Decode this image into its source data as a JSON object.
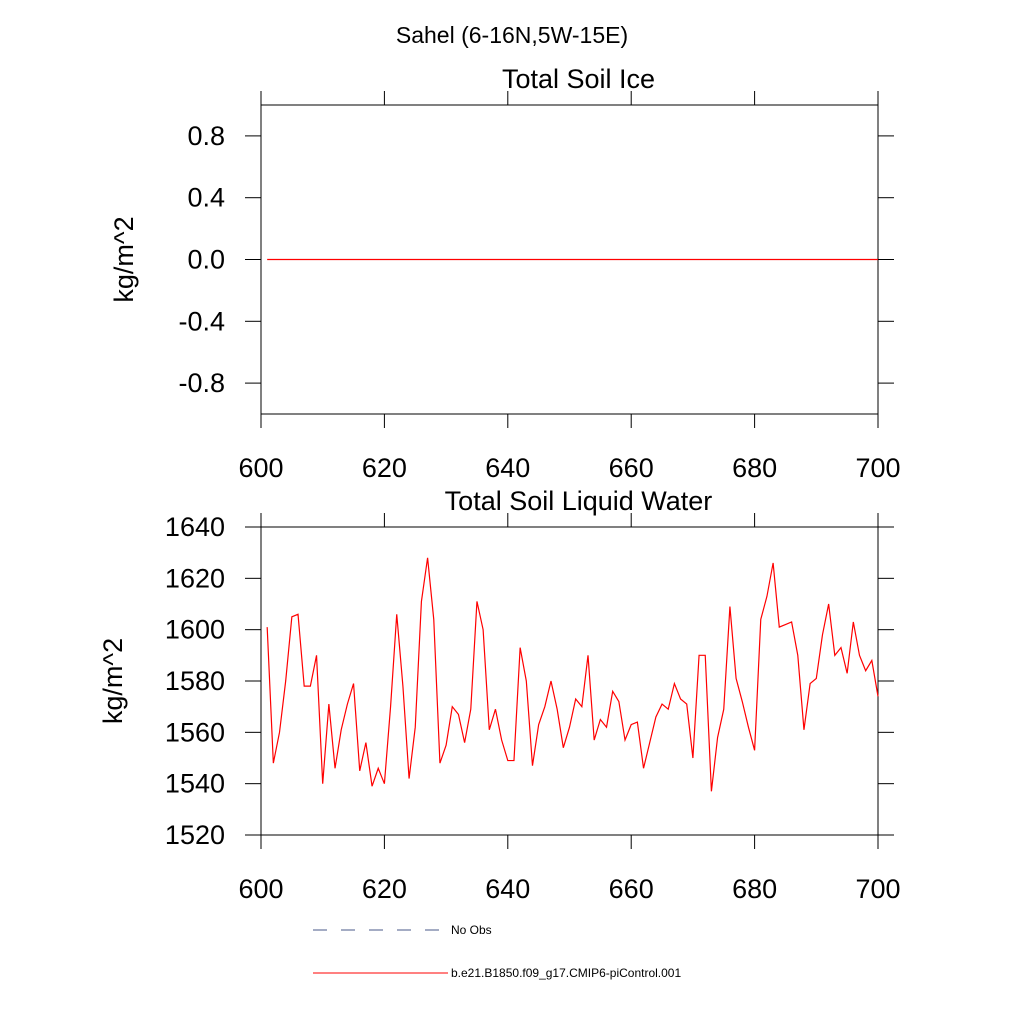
{
  "title": "Sahel (6-16N,5W-15E)",
  "legend": [
    {
      "name": "No Obs",
      "color": "#4a5a8a",
      "dash": true
    },
    {
      "name": "b.e21.B1850.f09_g17.CMIP6-piControl.001",
      "color": "#ff0000",
      "dash": false
    }
  ],
  "chart_data": [
    {
      "type": "line",
      "title": "Total Soil Ice",
      "y_label": "kg/m^2",
      "x": [
        601,
        602,
        603,
        604,
        605,
        606,
        607,
        608,
        609,
        610,
        611,
        612,
        613,
        614,
        615,
        616,
        617,
        618,
        619,
        620,
        621,
        622,
        623,
        624,
        625,
        626,
        627,
        628,
        629,
        630,
        631,
        632,
        633,
        634,
        635,
        636,
        637,
        638,
        639,
        640,
        641,
        642,
        643,
        644,
        645,
        646,
        647,
        648,
        649,
        650,
        651,
        652,
        653,
        654,
        655,
        656,
        657,
        658,
        659,
        660,
        661,
        662,
        663,
        664,
        665,
        666,
        667,
        668,
        669,
        670,
        671,
        672,
        673,
        674,
        675,
        676,
        677,
        678,
        679,
        680,
        681,
        682,
        683,
        684,
        685,
        686,
        687,
        688,
        689,
        690,
        691,
        692,
        693,
        694,
        695,
        696,
        697,
        698,
        699,
        700
      ],
      "series": [
        {
          "name": "b.e21.B1850.f09_g17.CMIP6-piControl.001",
          "color": "#ff0000",
          "values": [
            0,
            0,
            0,
            0,
            0,
            0,
            0,
            0,
            0,
            0,
            0,
            0,
            0,
            0,
            0,
            0,
            0,
            0,
            0,
            0,
            0,
            0,
            0,
            0,
            0,
            0,
            0,
            0,
            0,
            0,
            0,
            0,
            0,
            0,
            0,
            0,
            0,
            0,
            0,
            0,
            0,
            0,
            0,
            0,
            0,
            0,
            0,
            0,
            0,
            0,
            0,
            0,
            0,
            0,
            0,
            0,
            0,
            0,
            0,
            0,
            0,
            0,
            0,
            0,
            0,
            0,
            0,
            0,
            0,
            0,
            0,
            0,
            0,
            0,
            0,
            0,
            0,
            0,
            0,
            0,
            0,
            0,
            0,
            0,
            0,
            0,
            0,
            0,
            0,
            0,
            0,
            0,
            0,
            0,
            0,
            0,
            0,
            0,
            0,
            0
          ]
        }
      ],
      "xlim": [
        600,
        700
      ],
      "xticks": [
        600,
        620,
        640,
        660,
        680,
        700
      ],
      "ylim": [
        -1,
        1
      ],
      "yticks": [
        0.8,
        0.4,
        {
          "value": 0,
          "label": "0.0"
        },
        -0.4,
        -0.8
      ]
    },
    {
      "type": "line",
      "title": "Total Soil Liquid Water",
      "y_label": "kg/m^2",
      "x": [
        601,
        602,
        603,
        604,
        605,
        606,
        607,
        608,
        609,
        610,
        611,
        612,
        613,
        614,
        615,
        616,
        617,
        618,
        619,
        620,
        621,
        622,
        623,
        624,
        625,
        626,
        627,
        628,
        629,
        630,
        631,
        632,
        633,
        634,
        635,
        636,
        637,
        638,
        639,
        640,
        641,
        642,
        643,
        644,
        645,
        646,
        647,
        648,
        649,
        650,
        651,
        652,
        653,
        654,
        655,
        656,
        657,
        658,
        659,
        660,
        661,
        662,
        663,
        664,
        665,
        666,
        667,
        668,
        669,
        670,
        671,
        672,
        673,
        674,
        675,
        676,
        677,
        678,
        679,
        680,
        681,
        682,
        683,
        684,
        685,
        686,
        687,
        688,
        689,
        690,
        691,
        692,
        693,
        694,
        695,
        696,
        697,
        698,
        699,
        700
      ],
      "series": [
        {
          "name": "b.e21.B1850.f09_g17.CMIP6-piControl.001",
          "color": "#ff0000",
          "values": [
            1601,
            1548,
            1560,
            1580,
            1605,
            1606,
            1578,
            1578,
            1590,
            1540,
            1571,
            1546,
            1561,
            1571,
            1579,
            1545,
            1556,
            1539,
            1546,
            1540,
            1570,
            1606,
            1578,
            1542,
            1562,
            1611,
            1628,
            1604,
            1548,
            1555,
            1570,
            1567,
            1556,
            1569,
            1611,
            1600,
            1561,
            1569,
            1557,
            1549,
            1549,
            1593,
            1580,
            1547,
            1563,
            1570,
            1580,
            1569,
            1554,
            1562,
            1573,
            1570,
            1590,
            1557,
            1565,
            1562,
            1576,
            1572,
            1557,
            1563,
            1564,
            1546,
            1556,
            1566,
            1571,
            1569,
            1579,
            1573,
            1571,
            1550,
            1590,
            1590,
            1537,
            1558,
            1569,
            1609,
            1581,
            1572,
            1562,
            1553,
            1604,
            1613,
            1626,
            1601,
            1602,
            1603,
            1590,
            1561,
            1579,
            1581,
            1598,
            1610,
            1590,
            1593,
            1583,
            1603,
            1590,
            1584,
            1588,
            1574
          ]
        }
      ],
      "xlim": [
        600,
        700
      ],
      "xticks": [
        600,
        620,
        640,
        660,
        680,
        700
      ],
      "ylim": [
        1520,
        1640
      ],
      "yticks": [
        1640,
        1620,
        1600,
        1580,
        1560,
        1540,
        1520
      ]
    }
  ]
}
